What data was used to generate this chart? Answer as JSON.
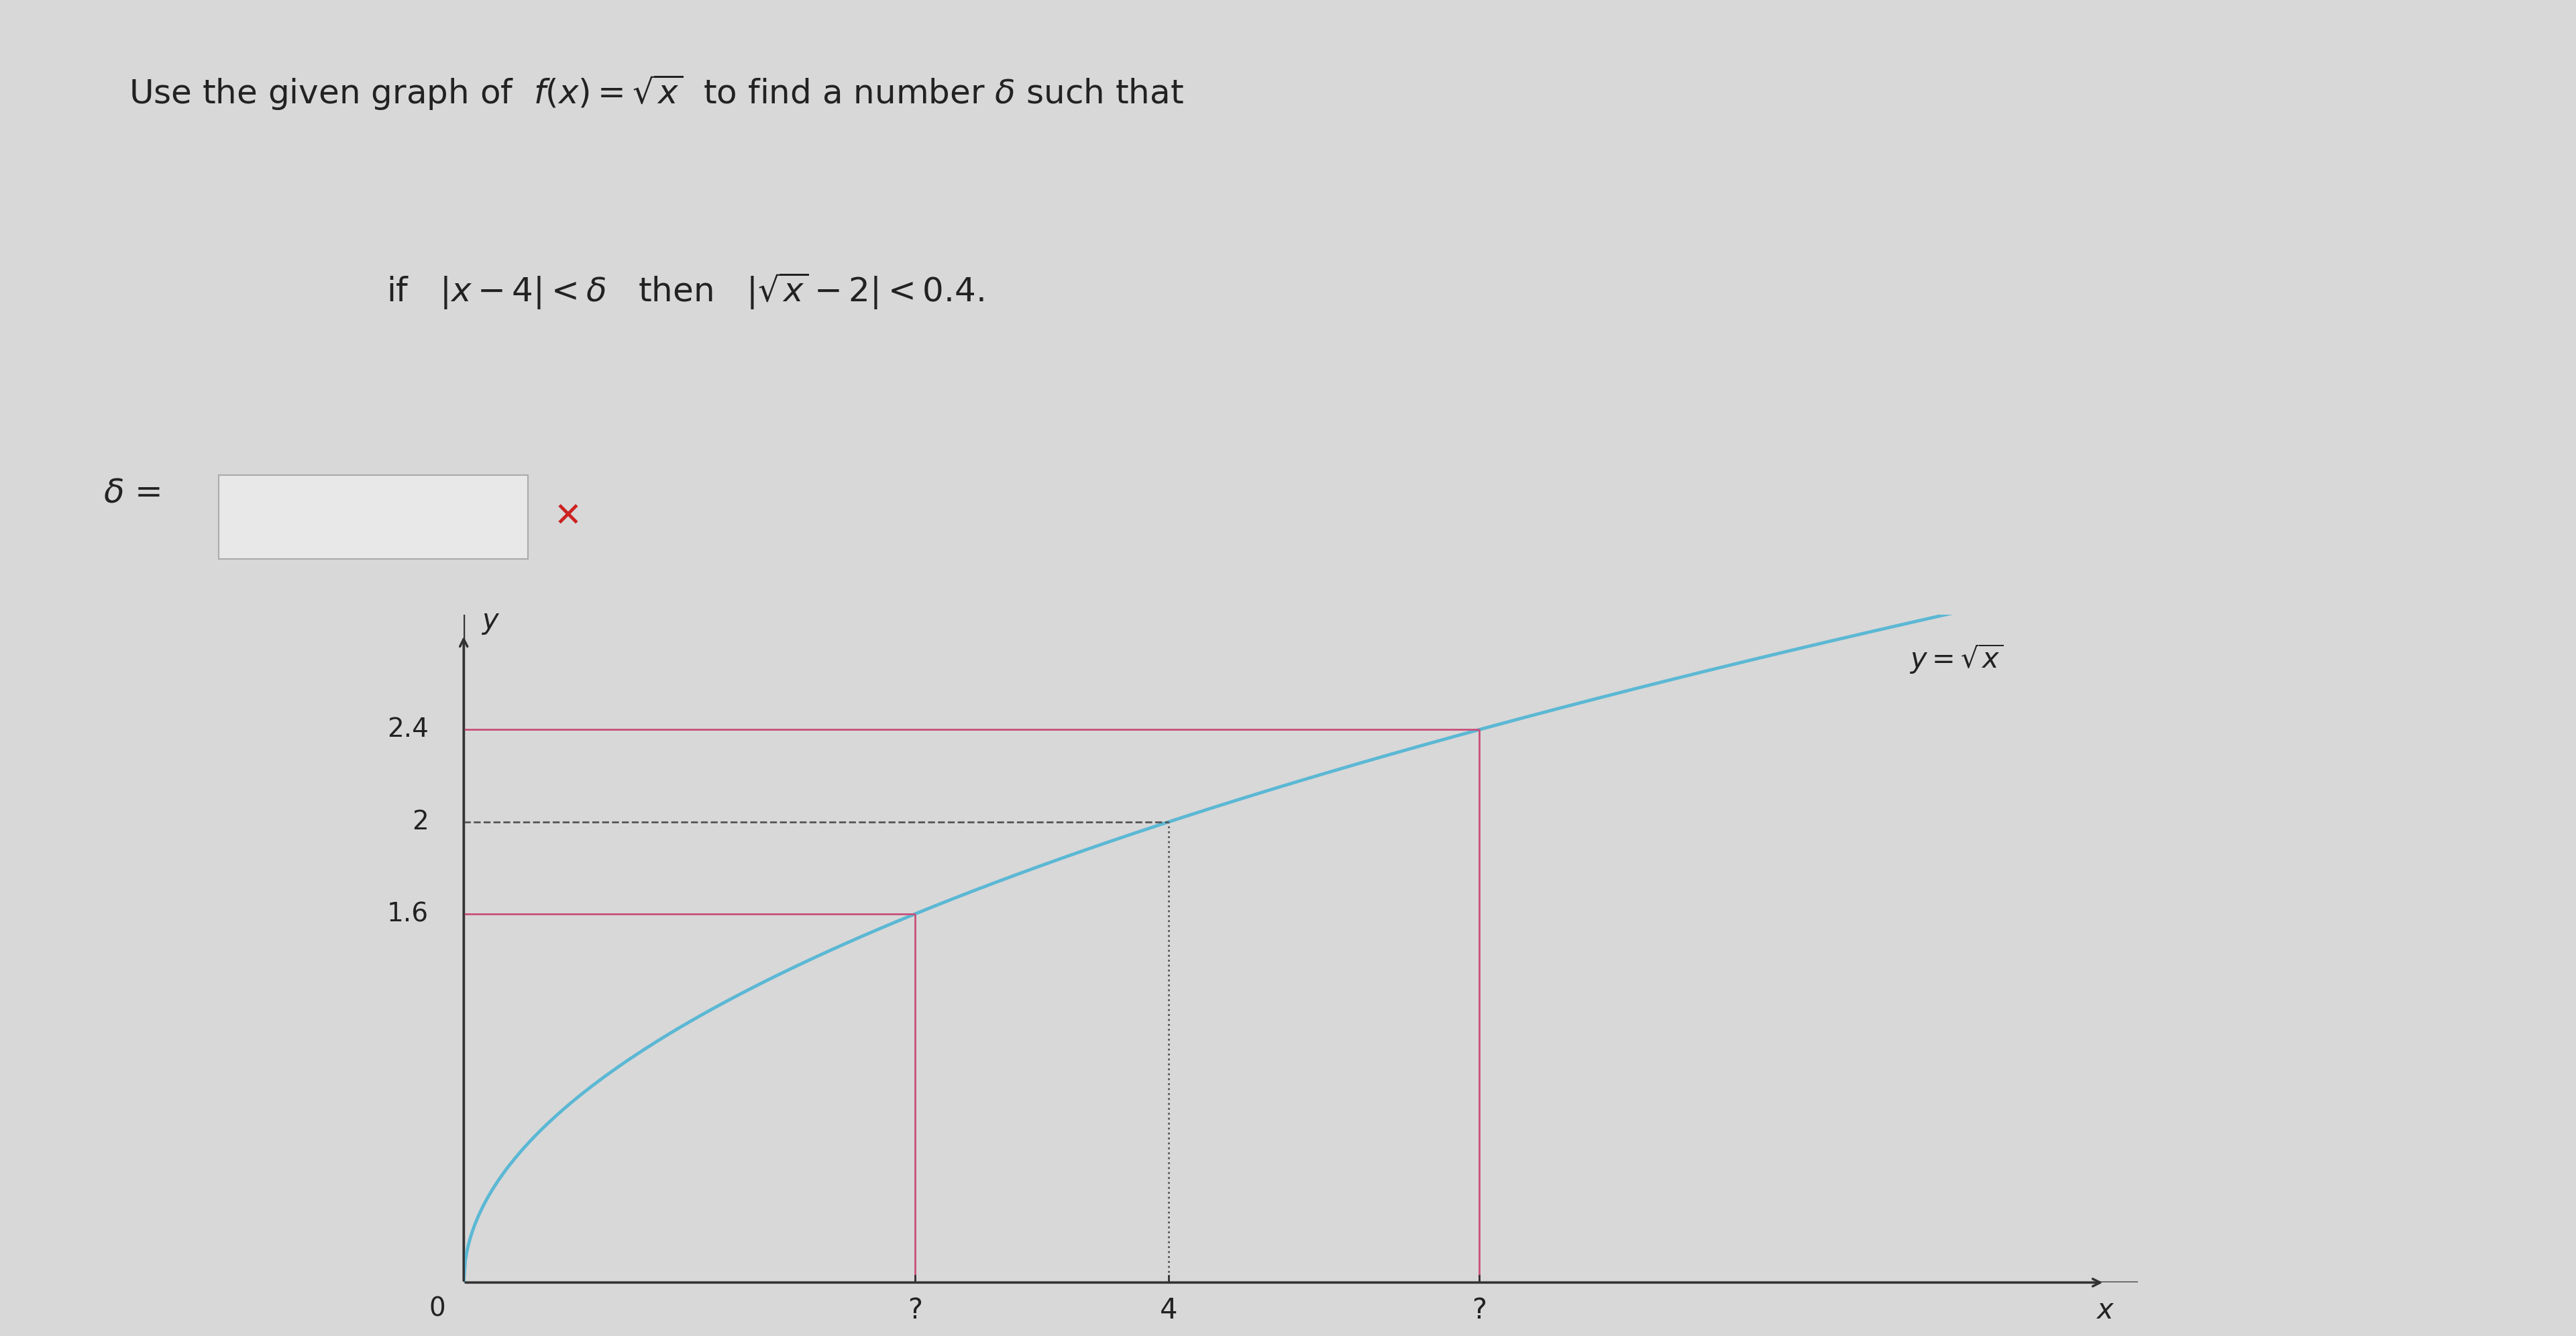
{
  "background_color": "#d8d8d8",
  "title_text": "Use the given graph of  $f(x) = \\sqrt{x}$  to find a number $\\delta$ such that",
  "condition_text": "if   $|x - 4| < \\delta$   then   $|\\sqrt{x} - 2| < 0.4$.",
  "delta_label": "$\\delta$ =",
  "y_ticks": [
    1.6,
    2.0,
    2.4
  ],
  "x_special": [
    4
  ],
  "x_label": "x",
  "y_label": "y",
  "curve_color": "#5bb8d4",
  "hline_color": "#c9507a",
  "vline_color": "#c9507a",
  "dashed_color": "#555555",
  "axis_color": "#333333",
  "text_color": "#222222",
  "func_label": "$y=\\sqrt{x}$",
  "x_range": [
    0,
    9.5
  ],
  "y_range": [
    0,
    2.9
  ],
  "x_lower_q": 2.56,
  "x_upper_q": 5.76,
  "y_lower": 1.6,
  "y_upper": 2.4,
  "y_mid": 2.0,
  "x_mid": 4.0,
  "input_box_color": "#e8e8e8",
  "input_box_edge": "#aaaaaa"
}
